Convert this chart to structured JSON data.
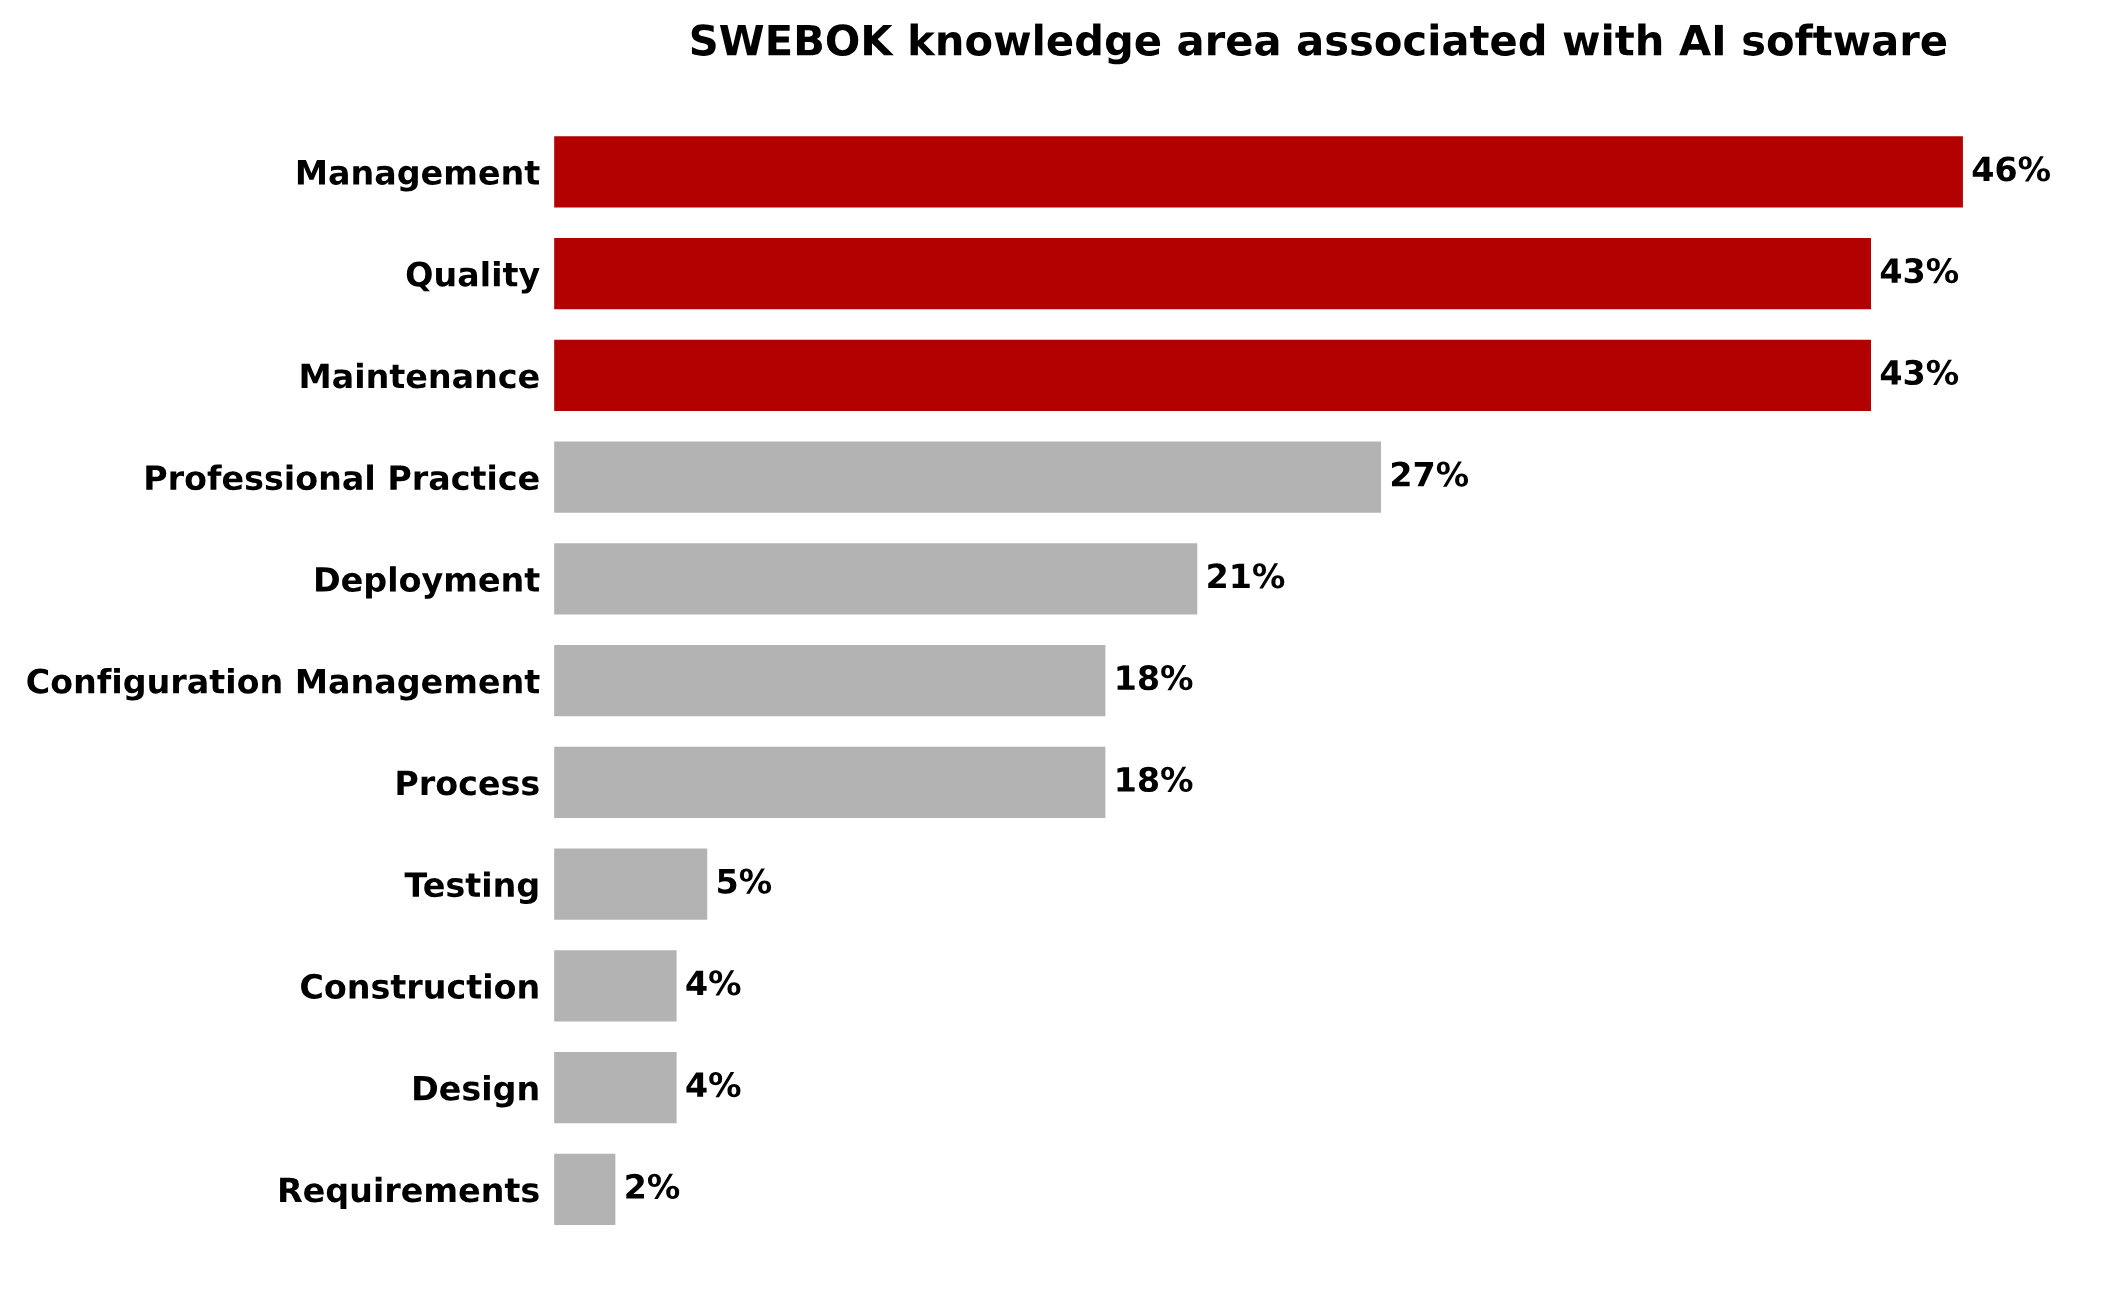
{
  "chart_data": {
    "type": "bar",
    "orientation": "horizontal",
    "title": "SWEBOK knowledge area associated with AI software",
    "categories": [
      "Management",
      "Quality",
      "Maintenance",
      "Professional Practice",
      "Deployment",
      "Configuration Management",
      "Process",
      "Testing",
      "Construction",
      "Design",
      "Requirements"
    ],
    "values": [
      46,
      43,
      43,
      27,
      21,
      18,
      18,
      5,
      4,
      4,
      2
    ],
    "value_labels": [
      "46%",
      "43%",
      "43%",
      "27%",
      "21%",
      "18%",
      "18%",
      "5%",
      "4%",
      "4%",
      "2%"
    ],
    "colors": [
      "#b30000",
      "#b30000",
      "#b30000",
      "#b3b3b3",
      "#b3b3b3",
      "#b3b3b3",
      "#b3b3b3",
      "#b3b3b3",
      "#b3b3b3",
      "#b3b3b3",
      "#b3b3b3"
    ],
    "grid": false,
    "legend": false
  }
}
